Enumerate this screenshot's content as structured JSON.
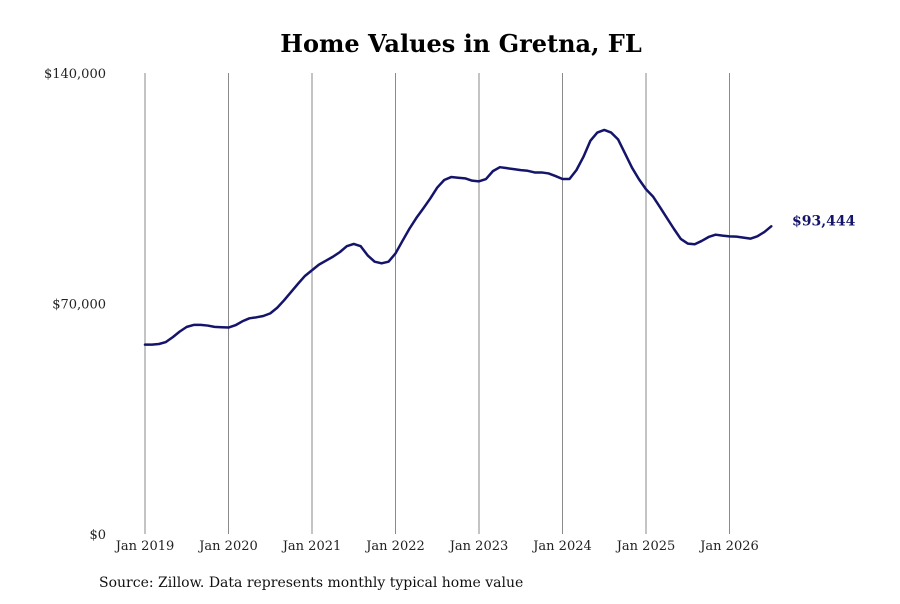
{
  "chart_data": {
    "type": "line",
    "title": "Home Values in Gretna, FL",
    "source": "Source: Zillow. Data represents monthly typical home value",
    "xlabel": "",
    "ylabel": "",
    "ylim": [
      0,
      140000
    ],
    "y_ticks": [
      {
        "value": 0,
        "label": "$0"
      },
      {
        "value": 70000,
        "label": "$70,000"
      },
      {
        "value": 140000,
        "label": "$140,000"
      }
    ],
    "x_ticks": [
      {
        "value": "2019-01",
        "label": "Jan 2019"
      },
      {
        "value": "2020-01",
        "label": "Jan 2020"
      },
      {
        "value": "2021-01",
        "label": "Jan 2021"
      },
      {
        "value": "2022-01",
        "label": "Jan 2022"
      },
      {
        "value": "2023-01",
        "label": "Jan 2023"
      },
      {
        "value": "2024-01",
        "label": "Jan 2024"
      },
      {
        "value": "2025-01",
        "label": "Jan 2025"
      },
      {
        "value": "2026-01",
        "label": "Jan 2026"
      }
    ],
    "grid": "vertical",
    "line_color": "#14146b",
    "end_label": "$93,444",
    "series": [
      {
        "x": [
          "2019-01",
          "2019-02",
          "2019-03",
          "2019-04",
          "2019-05",
          "2019-06",
          "2019-07",
          "2019-08",
          "2019-09",
          "2019-10",
          "2019-11",
          "2019-12",
          "2020-01",
          "2020-02",
          "2020-03",
          "2020-04",
          "2020-05",
          "2020-06",
          "2020-07",
          "2020-08",
          "2020-09",
          "2020-10",
          "2020-11",
          "2020-12",
          "2021-01",
          "2021-02",
          "2021-03",
          "2021-04",
          "2021-05",
          "2021-06",
          "2021-07",
          "2021-08",
          "2021-09",
          "2021-10",
          "2021-11",
          "2021-12",
          "2022-01",
          "2022-02",
          "2022-03",
          "2022-04",
          "2022-05",
          "2022-06",
          "2022-07",
          "2022-08",
          "2022-09",
          "2022-10",
          "2022-11",
          "2022-12",
          "2023-01",
          "2023-02",
          "2023-03",
          "2023-04",
          "2023-05",
          "2023-06",
          "2023-07",
          "2023-08",
          "2023-09",
          "2023-10",
          "2023-11",
          "2023-12",
          "2024-01",
          "2024-02",
          "2024-03",
          "2024-04",
          "2024-05",
          "2024-06",
          "2024-07",
          "2024-08",
          "2024-09",
          "2024-10",
          "2024-11",
          "2024-12",
          "2025-01",
          "2025-02",
          "2025-03",
          "2025-04",
          "2025-05",
          "2025-06",
          "2025-07",
          "2025-08",
          "2025-09",
          "2025-10",
          "2025-11",
          "2025-12",
          "2026-01",
          "2026-02",
          "2026-03",
          "2026-04",
          "2026-05",
          "2026-06",
          "2026-07"
        ],
        "values": [
          57500,
          57500,
          57700,
          58300,
          59800,
          61500,
          62900,
          63500,
          63500,
          63300,
          62900,
          62800,
          62700,
          63400,
          64600,
          65500,
          65800,
          66200,
          67000,
          68700,
          71000,
          73500,
          76000,
          78400,
          80100,
          81800,
          83000,
          84200,
          85600,
          87400,
          88100,
          87400,
          84600,
          82700,
          82200,
          82700,
          85200,
          89000,
          92700,
          96000,
          98900,
          101900,
          105200,
          107500,
          108400,
          108200,
          108000,
          107300,
          107100,
          107800,
          110200,
          111400,
          111100,
          110800,
          110500,
          110300,
          109800,
          109800,
          109500,
          108700,
          107800,
          107800,
          110500,
          114500,
          119400,
          121900,
          122700,
          121900,
          119800,
          115500,
          111200,
          107700,
          104700,
          102500,
          99300,
          96000,
          92700,
          89600,
          88200,
          88000,
          89000,
          90200,
          90900,
          90600,
          90400,
          90300,
          90000,
          89700,
          90400,
          91700,
          93444
        ]
      }
    ]
  }
}
